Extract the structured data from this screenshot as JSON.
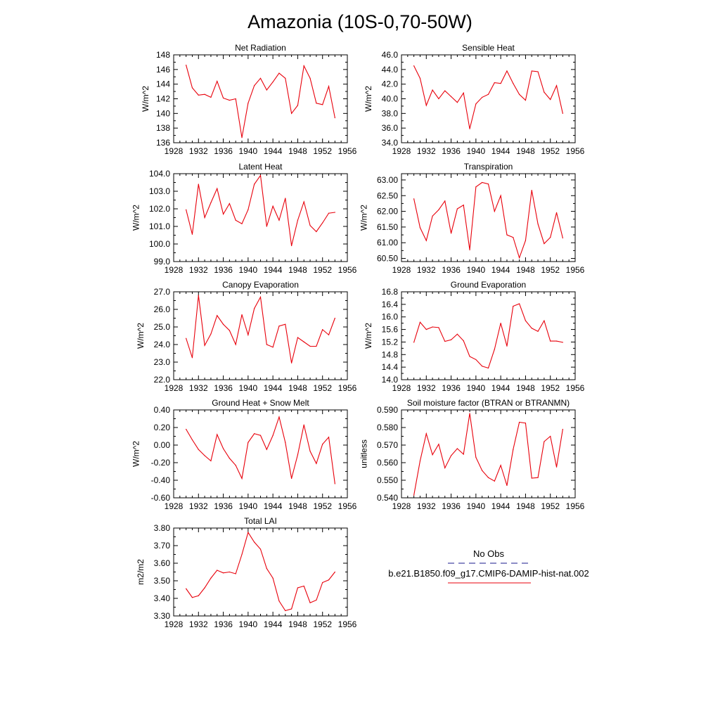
{
  "title": "Amazonia (10S-0,70-50W)",
  "legend": {
    "entries": [
      {
        "label": "No Obs",
        "style": "dashed",
        "color": "#1a1a8c"
      },
      {
        "label": "b.e21.B1850.f09_g17.CMIP6-DAMIP-hist-nat.002",
        "style": "solid",
        "color": "#e8000b"
      }
    ]
  },
  "chart_data": [
    {
      "type": "line",
      "title": "Net Radiation",
      "ylabel": "W/m^2",
      "xlim": [
        1928,
        1956
      ],
      "xticks": [
        "1928",
        "1932",
        "1936",
        "1940",
        "1944",
        "1948",
        "1952",
        "1956"
      ],
      "ylim": [
        136,
        148
      ],
      "yticks": [
        "136",
        "138",
        "140",
        "142",
        "144",
        "146",
        "148"
      ],
      "x": [
        1930,
        1931,
        1932,
        1933,
        1934,
        1935,
        1936,
        1937,
        1938,
        1939,
        1940,
        1941,
        1942,
        1943,
        1944,
        1945,
        1946,
        1947,
        1948,
        1949,
        1950,
        1951,
        1952,
        1953,
        1954
      ],
      "series": [
        {
          "values": [
            146.6,
            143.5,
            142.5,
            142.6,
            142.2,
            144.4,
            142.1,
            141.8,
            142.0,
            136.7,
            141.4,
            143.8,
            144.8,
            143.2,
            144.3,
            145.5,
            144.8,
            140.0,
            141.1,
            146.5,
            144.8,
            141.4,
            141.2,
            143.7,
            139.4
          ],
          "color": "#e8000b"
        }
      ]
    },
    {
      "type": "line",
      "title": "Sensible Heat",
      "ylabel": "W/m^2",
      "xlim": [
        1928,
        1956
      ],
      "xticks": [
        "1928",
        "1932",
        "1936",
        "1940",
        "1944",
        "1948",
        "1952",
        "1956"
      ],
      "ylim": [
        34,
        46
      ],
      "yticks": [
        "34.0",
        "36.0",
        "38.0",
        "40.0",
        "42.0",
        "44.0",
        "46.0"
      ],
      "x": [
        1930,
        1931,
        1932,
        1933,
        1934,
        1935,
        1936,
        1937,
        1938,
        1939,
        1940,
        1941,
        1942,
        1943,
        1944,
        1945,
        1946,
        1947,
        1948,
        1949,
        1950,
        1951,
        1952,
        1953,
        1954
      ],
      "series": [
        {
          "values": [
            44.5,
            42.8,
            39.1,
            41.2,
            40.0,
            41.1,
            40.3,
            39.5,
            40.8,
            35.9,
            39.3,
            40.2,
            40.6,
            42.2,
            42.1,
            43.8,
            42.1,
            40.6,
            39.8,
            43.8,
            43.7,
            40.9,
            39.9,
            41.8,
            38.0
          ],
          "color": "#e8000b"
        }
      ]
    },
    {
      "type": "line",
      "title": "Latent Heat",
      "ylabel": "W/m^2",
      "xlim": [
        1928,
        1956
      ],
      "xticks": [
        "1928",
        "1932",
        "1936",
        "1940",
        "1944",
        "1948",
        "1952",
        "1956"
      ],
      "ylim": [
        99,
        104
      ],
      "yticks": [
        "99.0",
        "100.0",
        "101.0",
        "102.0",
        "103.0",
        "104.0"
      ],
      "x": [
        1930,
        1931,
        1932,
        1933,
        1934,
        1935,
        1936,
        1937,
        1938,
        1939,
        1940,
        1941,
        1942,
        1943,
        1944,
        1945,
        1946,
        1947,
        1948,
        1949,
        1950,
        1951,
        1952,
        1953,
        1954
      ],
      "series": [
        {
          "values": [
            101.95,
            100.55,
            103.4,
            101.5,
            102.35,
            103.15,
            101.7,
            102.3,
            101.35,
            101.15,
            101.95,
            103.4,
            103.9,
            101.0,
            102.15,
            101.35,
            102.6,
            99.9,
            101.35,
            102.4,
            101.05,
            100.7,
            101.2,
            101.75,
            101.8
          ],
          "color": "#e8000b"
        }
      ]
    },
    {
      "type": "line",
      "title": "Transpiration",
      "ylabel": "W/m^2",
      "xlim": [
        1928,
        1956
      ],
      "xticks": [
        "1928",
        "1932",
        "1936",
        "1940",
        "1944",
        "1948",
        "1952",
        "1956"
      ],
      "ylim": [
        60.4,
        63.2
      ],
      "yticks": [
        "60.50",
        "61.00",
        "61.50",
        "62.00",
        "62.50",
        "63.00"
      ],
      "ytick_values": [
        60.5,
        61.0,
        61.5,
        62.0,
        62.5,
        63.0
      ],
      "x": [
        1930,
        1931,
        1932,
        1933,
        1934,
        1935,
        1936,
        1937,
        1938,
        1939,
        1940,
        1941,
        1942,
        1943,
        1944,
        1945,
        1946,
        1947,
        1948,
        1949,
        1950,
        1951,
        1952,
        1953,
        1954
      ],
      "series": [
        {
          "values": [
            62.4,
            61.48,
            61.07,
            61.85,
            62.05,
            62.33,
            61.3,
            62.08,
            62.2,
            60.77,
            62.78,
            62.92,
            62.87,
            62.0,
            62.5,
            61.25,
            61.17,
            60.52,
            61.07,
            62.67,
            61.6,
            60.97,
            61.17,
            61.96,
            61.15
          ],
          "color": "#e8000b"
        }
      ]
    },
    {
      "type": "line",
      "title": "Canopy Evaporation",
      "ylabel": "W/m^2",
      "xlim": [
        1928,
        1956
      ],
      "xticks": [
        "1928",
        "1932",
        "1936",
        "1940",
        "1944",
        "1948",
        "1952",
        "1956"
      ],
      "ylim": [
        22,
        27
      ],
      "yticks": [
        "22.0",
        "23.0",
        "24.0",
        "25.0",
        "26.0",
        "27.0"
      ],
      "x": [
        1930,
        1931,
        1932,
        1933,
        1934,
        1935,
        1936,
        1937,
        1938,
        1939,
        1940,
        1941,
        1942,
        1943,
        1944,
        1945,
        1946,
        1947,
        1948,
        1949,
        1950,
        1951,
        1952,
        1953,
        1954
      ],
      "series": [
        {
          "values": [
            24.35,
            23.25,
            26.8,
            23.95,
            24.6,
            25.65,
            25.15,
            24.8,
            24.0,
            25.7,
            24.55,
            26.05,
            26.7,
            24.0,
            23.85,
            25.05,
            25.15,
            22.95,
            24.4,
            24.15,
            23.9,
            23.9,
            24.85,
            24.55,
            25.5
          ],
          "color": "#e8000b"
        }
      ]
    },
    {
      "type": "line",
      "title": "Ground Evaporation",
      "ylabel": "W/m^2",
      "xlim": [
        1928,
        1956
      ],
      "xticks": [
        "1928",
        "1932",
        "1936",
        "1940",
        "1944",
        "1948",
        "1952",
        "1956"
      ],
      "ylim": [
        14,
        16.8
      ],
      "yticks": [
        "14.0",
        "14.4",
        "14.8",
        "15.2",
        "15.6",
        "16.0",
        "16.4",
        "16.8"
      ],
      "x": [
        1930,
        1931,
        1932,
        1933,
        1934,
        1935,
        1936,
        1937,
        1938,
        1939,
        1940,
        1941,
        1942,
        1943,
        1944,
        1945,
        1946,
        1947,
        1948,
        1949,
        1950,
        1951,
        1952,
        1953,
        1954
      ],
      "series": [
        {
          "values": [
            15.19,
            15.83,
            15.6,
            15.68,
            15.66,
            15.22,
            15.27,
            15.45,
            15.24,
            14.74,
            14.64,
            14.43,
            14.37,
            14.97,
            15.8,
            15.07,
            16.34,
            16.42,
            15.88,
            15.64,
            15.54,
            15.88,
            15.23,
            15.23,
            15.19
          ],
          "color": "#e8000b"
        }
      ]
    },
    {
      "type": "line",
      "title": "Ground Heat + Snow Melt",
      "ylabel": "W/m^2",
      "xlim": [
        1928,
        1956
      ],
      "xticks": [
        "1928",
        "1932",
        "1936",
        "1940",
        "1944",
        "1948",
        "1952",
        "1956"
      ],
      "ylim": [
        -0.6,
        0.4
      ],
      "yticks": [
        "-0.60",
        "-0.40",
        "-0.20",
        "0.00",
        "0.20",
        "0.40"
      ],
      "ytick_values": [
        -0.6,
        -0.4,
        -0.2,
        0.0,
        0.2,
        0.4
      ],
      "x": [
        1930,
        1931,
        1932,
        1933,
        1934,
        1935,
        1936,
        1937,
        1938,
        1939,
        1940,
        1941,
        1942,
        1943,
        1944,
        1945,
        1946,
        1947,
        1948,
        1949,
        1950,
        1951,
        1952,
        1953,
        1954
      ],
      "series": [
        {
          "values": [
            0.18,
            0.06,
            -0.05,
            -0.12,
            -0.18,
            0.12,
            -0.04,
            -0.15,
            -0.23,
            -0.38,
            0.03,
            0.13,
            0.11,
            -0.05,
            0.11,
            0.32,
            0.03,
            -0.38,
            -0.11,
            0.23,
            -0.07,
            -0.21,
            0.01,
            0.09,
            -0.44
          ],
          "color": "#e8000b"
        }
      ]
    },
    {
      "type": "line",
      "title": "Soil moisture factor (BTRAN or BTRANMN)",
      "ylabel": "unitless",
      "xlim": [
        1928,
        1956
      ],
      "xticks": [
        "1928",
        "1932",
        "1936",
        "1940",
        "1944",
        "1948",
        "1952",
        "1956"
      ],
      "ylim": [
        0.54,
        0.59
      ],
      "yticks": [
        "0.540",
        "0.550",
        "0.560",
        "0.570",
        "0.580",
        "0.590"
      ],
      "ytick_values": [
        0.54,
        0.55,
        0.56,
        0.57,
        0.58,
        0.59
      ],
      "x": [
        1930,
        1931,
        1932,
        1933,
        1934,
        1935,
        1936,
        1937,
        1938,
        1939,
        1940,
        1941,
        1942,
        1943,
        1944,
        1945,
        1946,
        1947,
        1948,
        1949,
        1950,
        1951,
        1952,
        1953,
        1954
      ],
      "series": [
        {
          "values": [
            0.5415,
            0.561,
            0.5765,
            0.5645,
            0.5705,
            0.557,
            0.564,
            0.568,
            0.5648,
            0.588,
            0.563,
            0.5555,
            0.5515,
            0.5495,
            0.5585,
            0.547,
            0.5675,
            0.583,
            0.5825,
            0.5512,
            0.5515,
            0.572,
            0.575,
            0.5575,
            0.579
          ],
          "color": "#e8000b"
        }
      ]
    },
    {
      "type": "line",
      "title": "Total LAI",
      "ylabel": "m2/m2",
      "xlim": [
        1928,
        1956
      ],
      "xticks": [
        "1928",
        "1932",
        "1936",
        "1940",
        "1944",
        "1948",
        "1952",
        "1956"
      ],
      "ylim": [
        3.3,
        3.8
      ],
      "yticks": [
        "3.30",
        "3.40",
        "3.50",
        "3.60",
        "3.70",
        "3.80"
      ],
      "ytick_values": [
        3.3,
        3.4,
        3.5,
        3.6,
        3.7,
        3.8
      ],
      "x": [
        1930,
        1931,
        1932,
        1933,
        1934,
        1935,
        1936,
        1937,
        1938,
        1939,
        1940,
        1941,
        1942,
        1943,
        1944,
        1945,
        1946,
        1947,
        1948,
        1949,
        1950,
        1951,
        1952,
        1953,
        1954
      ],
      "series": [
        {
          "values": [
            3.455,
            3.405,
            3.415,
            3.46,
            3.515,
            3.56,
            3.545,
            3.55,
            3.54,
            3.65,
            3.775,
            3.72,
            3.68,
            3.57,
            3.515,
            3.385,
            3.33,
            3.34,
            3.46,
            3.47,
            3.375,
            3.39,
            3.49,
            3.505,
            3.55
          ],
          "color": "#e8000b"
        }
      ]
    }
  ]
}
